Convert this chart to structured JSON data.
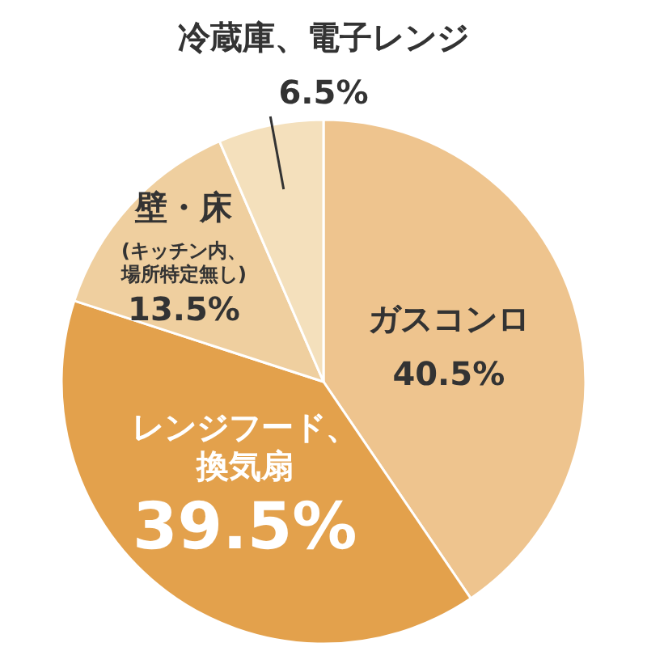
{
  "chart_data": {
    "type": "pie",
    "categories": [
      "ガスコンロ",
      "レンジフード、換気扇",
      "壁・床(キッチン内、場所特定無し)",
      "冷蔵庫、電子レンジ"
    ],
    "values": [
      40.5,
      39.5,
      13.5,
      6.5
    ],
    "value_labels": [
      "40.5%",
      "39.5%",
      "13.5%",
      "6.5%"
    ],
    "colors": [
      "#eec48e",
      "#e3a14c",
      "#efcf9f",
      "#f4e0bc"
    ]
  }
}
